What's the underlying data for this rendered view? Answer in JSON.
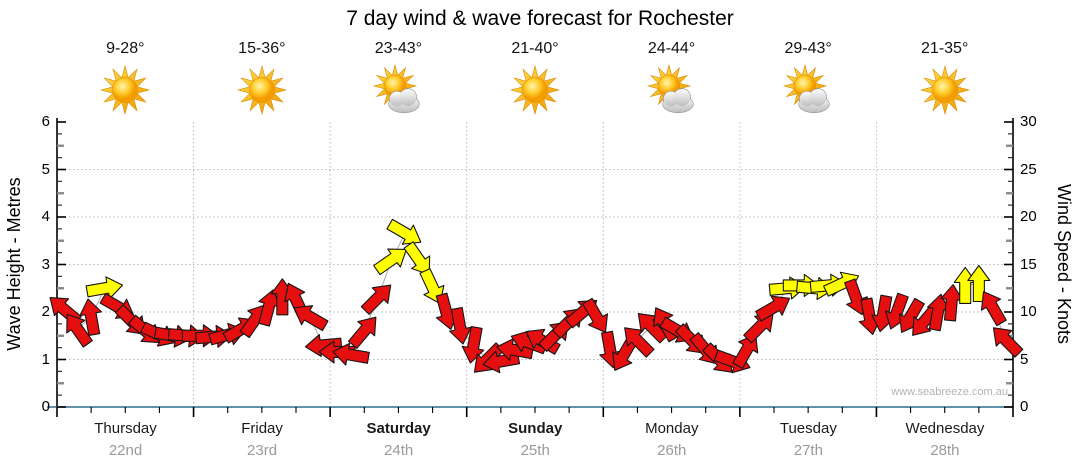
{
  "title": "7 day wind & wave forecast for Rochester",
  "watermark": "www.seabreeze.com.au",
  "axes": {
    "left": {
      "label": "Wave Height - Metres",
      "ticks": [
        0,
        1,
        2,
        3,
        4,
        5,
        6
      ],
      "range": [
        0,
        6
      ]
    },
    "right": {
      "label": "Wind Speed - Knots",
      "ticks": [
        0,
        5,
        10,
        15,
        20,
        25,
        30
      ],
      "range": [
        0,
        30
      ]
    }
  },
  "days": [
    {
      "name": "Thursday",
      "date": "22nd",
      "temp": "9-28°",
      "icon": "sunny",
      "bold": false
    },
    {
      "name": "Friday",
      "date": "23rd",
      "temp": "15-36°",
      "icon": "sunny",
      "bold": false
    },
    {
      "name": "Saturday",
      "date": "24th",
      "temp": "23-43°",
      "icon": "partly-cloudy",
      "bold": true
    },
    {
      "name": "Sunday",
      "date": "25th",
      "temp": "21-40°",
      "icon": "sunny",
      "bold": true
    },
    {
      "name": "Monday",
      "date": "26th",
      "temp": "24-44°",
      "icon": "partly-cloudy",
      "bold": false
    },
    {
      "name": "Tuesday",
      "date": "27th",
      "temp": "29-43°",
      "icon": "partly-cloudy",
      "bold": false
    },
    {
      "name": "Wednesday",
      "date": "28th",
      "temp": "21-35°",
      "icon": "sunny",
      "bold": false
    }
  ],
  "chart_data": {
    "type": "wind-arrows",
    "unit": "knots",
    "points_per_day": 10,
    "yellow_threshold_knots": 12.25,
    "colors": {
      "light_wind": "#e60f0f",
      "fresh_wind": "#ffff00",
      "outline": "#151515",
      "grid": "#b8b8b8",
      "x_axis": "#2f6e8f",
      "y_axis": "#000000"
    },
    "knots": [
      10.3,
      8.2,
      9.5,
      12.5,
      10.5,
      9.0,
      8.0,
      7.6,
      7.5,
      7.5,
      7.5,
      7.4,
      7.6,
      8.2,
      9.2,
      10.5,
      11.6,
      11.3,
      9.5,
      6.5,
      5.8,
      5.5,
      8.0,
      11.5,
      15.5,
      18.3,
      15.5,
      12.6,
      10.0,
      8.5,
      6.5,
      5.0,
      4.8,
      6.0,
      6.8,
      7.0,
      7.6,
      9.0,
      10.0,
      9.5,
      6.0,
      5.5,
      7.0,
      8.5,
      8.8,
      8.0,
      7.0,
      6.0,
      5.0,
      4.8,
      6.0,
      8.5,
      10.5,
      12.5,
      12.8,
      12.5,
      12.8,
      13.0,
      11.5,
      9.5,
      9.8,
      10.0,
      9.5,
      9.0,
      10.0,
      11.0,
      12.8,
      13.0,
      10.5,
      7.0
    ],
    "dir_deg": [
      -140,
      -125,
      -100,
      -10,
      30,
      45,
      40,
      25,
      10,
      5,
      0,
      -5,
      -15,
      -30,
      -55,
      -75,
      -90,
      -115,
      -150,
      175,
      180,
      -170,
      -50,
      -45,
      -35,
      30,
      55,
      65,
      75,
      80,
      100,
      135,
      170,
      -170,
      -160,
      -150,
      -45,
      -45,
      -40,
      60,
      80,
      120,
      -135,
      -135,
      -120,
      30,
      45,
      50,
      45,
      20,
      -60,
      -45,
      -30,
      -5,
      0,
      5,
      -5,
      -25,
      70,
      80,
      100,
      110,
      120,
      130,
      -80,
      -85,
      -90,
      -90,
      -120,
      -135
    ]
  }
}
